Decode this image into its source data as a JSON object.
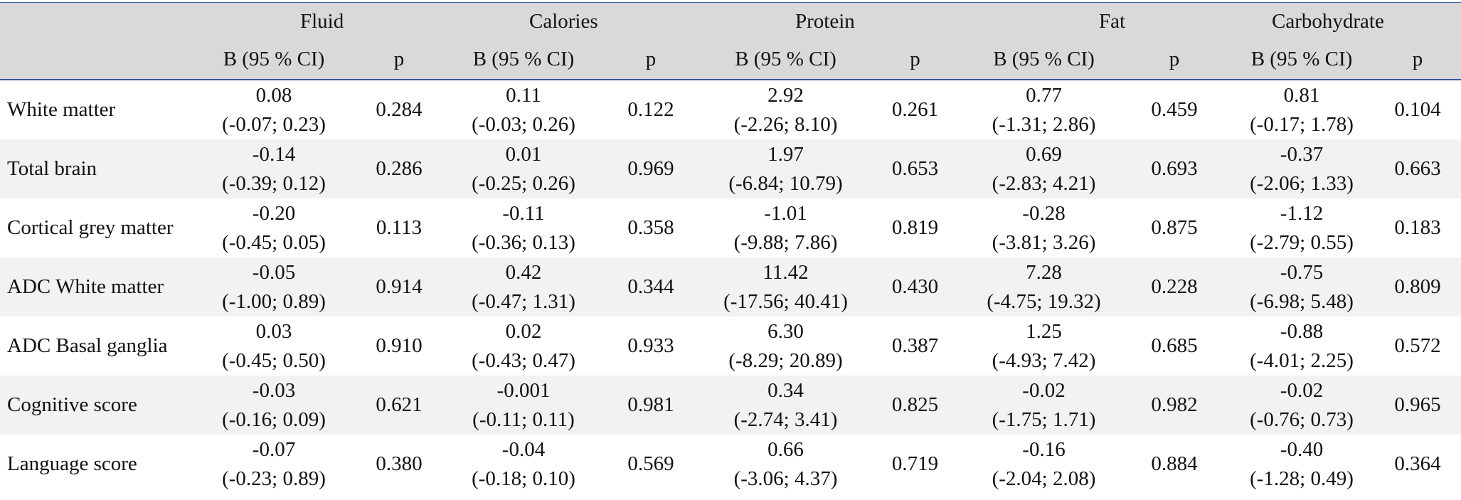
{
  "header": {
    "groups": [
      "Fluid",
      "Calories",
      "Protein",
      "Fat",
      "Carbohydrate"
    ],
    "sub_b": "B (95 % CI)",
    "sub_p": "p"
  },
  "rows": [
    {
      "label": "White matter",
      "cells": [
        {
          "b": "0.08",
          "ci": "(-0.07; 0.23)",
          "p": "0.284"
        },
        {
          "b": "0.11",
          "ci": "(-0.03; 0.26)",
          "p": "0.122"
        },
        {
          "b": "2.92",
          "ci": "(-2.26; 8.10)",
          "p": "0.261"
        },
        {
          "b": "0.77",
          "ci": "(-1.31; 2.86)",
          "p": "0.459"
        },
        {
          "b": "0.81",
          "ci": "(-0.17; 1.78)",
          "p": "0.104"
        }
      ]
    },
    {
      "label": "Total brain",
      "cells": [
        {
          "b": "-0.14",
          "ci": "(-0.39; 0.12)",
          "p": "0.286"
        },
        {
          "b": "0.01",
          "ci": "(-0.25; 0.26)",
          "p": "0.969"
        },
        {
          "b": "1.97",
          "ci": "(-6.84; 10.79)",
          "p": "0.653"
        },
        {
          "b": "0.69",
          "ci": "(-2.83; 4.21)",
          "p": "0.693"
        },
        {
          "b": "-0.37",
          "ci": "(-2.06; 1.33)",
          "p": "0.663"
        }
      ]
    },
    {
      "label": "Cortical grey matter",
      "cells": [
        {
          "b": "-0.20",
          "ci": "(-0.45; 0.05)",
          "p": "0.113"
        },
        {
          "b": "-0.11",
          "ci": "(-0.36; 0.13)",
          "p": "0.358"
        },
        {
          "b": "-1.01",
          "ci": "(-9.88; 7.86)",
          "p": "0.819"
        },
        {
          "b": "-0.28",
          "ci": "(-3.81; 3.26)",
          "p": "0.875"
        },
        {
          "b": "-1.12",
          "ci": "(-2.79; 0.55)",
          "p": "0.183"
        }
      ]
    },
    {
      "label": "ADC White matter",
      "cells": [
        {
          "b": "-0.05",
          "ci": "(-1.00; 0.89)",
          "p": "0.914"
        },
        {
          "b": "0.42",
          "ci": "(-0.47; 1.31)",
          "p": "0.344"
        },
        {
          "b": "11.42",
          "ci": "(-17.56; 40.41)",
          "p": "0.430"
        },
        {
          "b": "7.28",
          "ci": "(-4.75; 19.32)",
          "p": "0.228"
        },
        {
          "b": "-0.75",
          "ci": "(-6.98; 5.48)",
          "p": "0.809"
        }
      ]
    },
    {
      "label": "ADC Basal ganglia",
      "cells": [
        {
          "b": "0.03",
          "ci": "(-0.45; 0.50)",
          "p": "0.910"
        },
        {
          "b": "0.02",
          "ci": "(-0.43; 0.47)",
          "p": "0.933"
        },
        {
          "b": "6.30",
          "ci": "(-8.29; 20.89)",
          "p": "0.387"
        },
        {
          "b": "1.25",
          "ci": "(-4.93; 7.42)",
          "p": "0.685"
        },
        {
          "b": "-0.88",
          "ci": "(-4.01; 2.25)",
          "p": "0.572"
        }
      ]
    },
    {
      "label": "Cognitive score",
      "cells": [
        {
          "b": "-0.03",
          "ci": "(-0.16; 0.09)",
          "p": "0.621"
        },
        {
          "b": "-0.001",
          "ci": "(-0.11; 0.11)",
          "p": "0.981"
        },
        {
          "b": "0.34",
          "ci": "(-2.74; 3.41)",
          "p": "0.825"
        },
        {
          "b": "-0.02",
          "ci": "(-1.75; 1.71)",
          "p": "0.982"
        },
        {
          "b": "-0.02",
          "ci": "(-0.76; 0.73)",
          "p": "0.965"
        }
      ]
    },
    {
      "label": "Language score",
      "cells": [
        {
          "b": "-0.07",
          "ci": "(-0.23; 0.89)",
          "p": "0.380"
        },
        {
          "b": "-0.04",
          "ci": "(-0.18; 0.10)",
          "p": "0.569"
        },
        {
          "b": "0.66",
          "ci": "(-3.06; 4.37)",
          "p": "0.719"
        },
        {
          "b": "-0.16",
          "ci": "(-2.04; 2.08)",
          "p": "0.884"
        },
        {
          "b": "-0.40",
          "ci": "(-1.28; 0.49)",
          "p": "0.364"
        }
      ]
    }
  ],
  "colors": {
    "header_bg": "#d9d9d9",
    "stripe_bg": "#f2f2f2",
    "rule": "#3b5a9a"
  }
}
